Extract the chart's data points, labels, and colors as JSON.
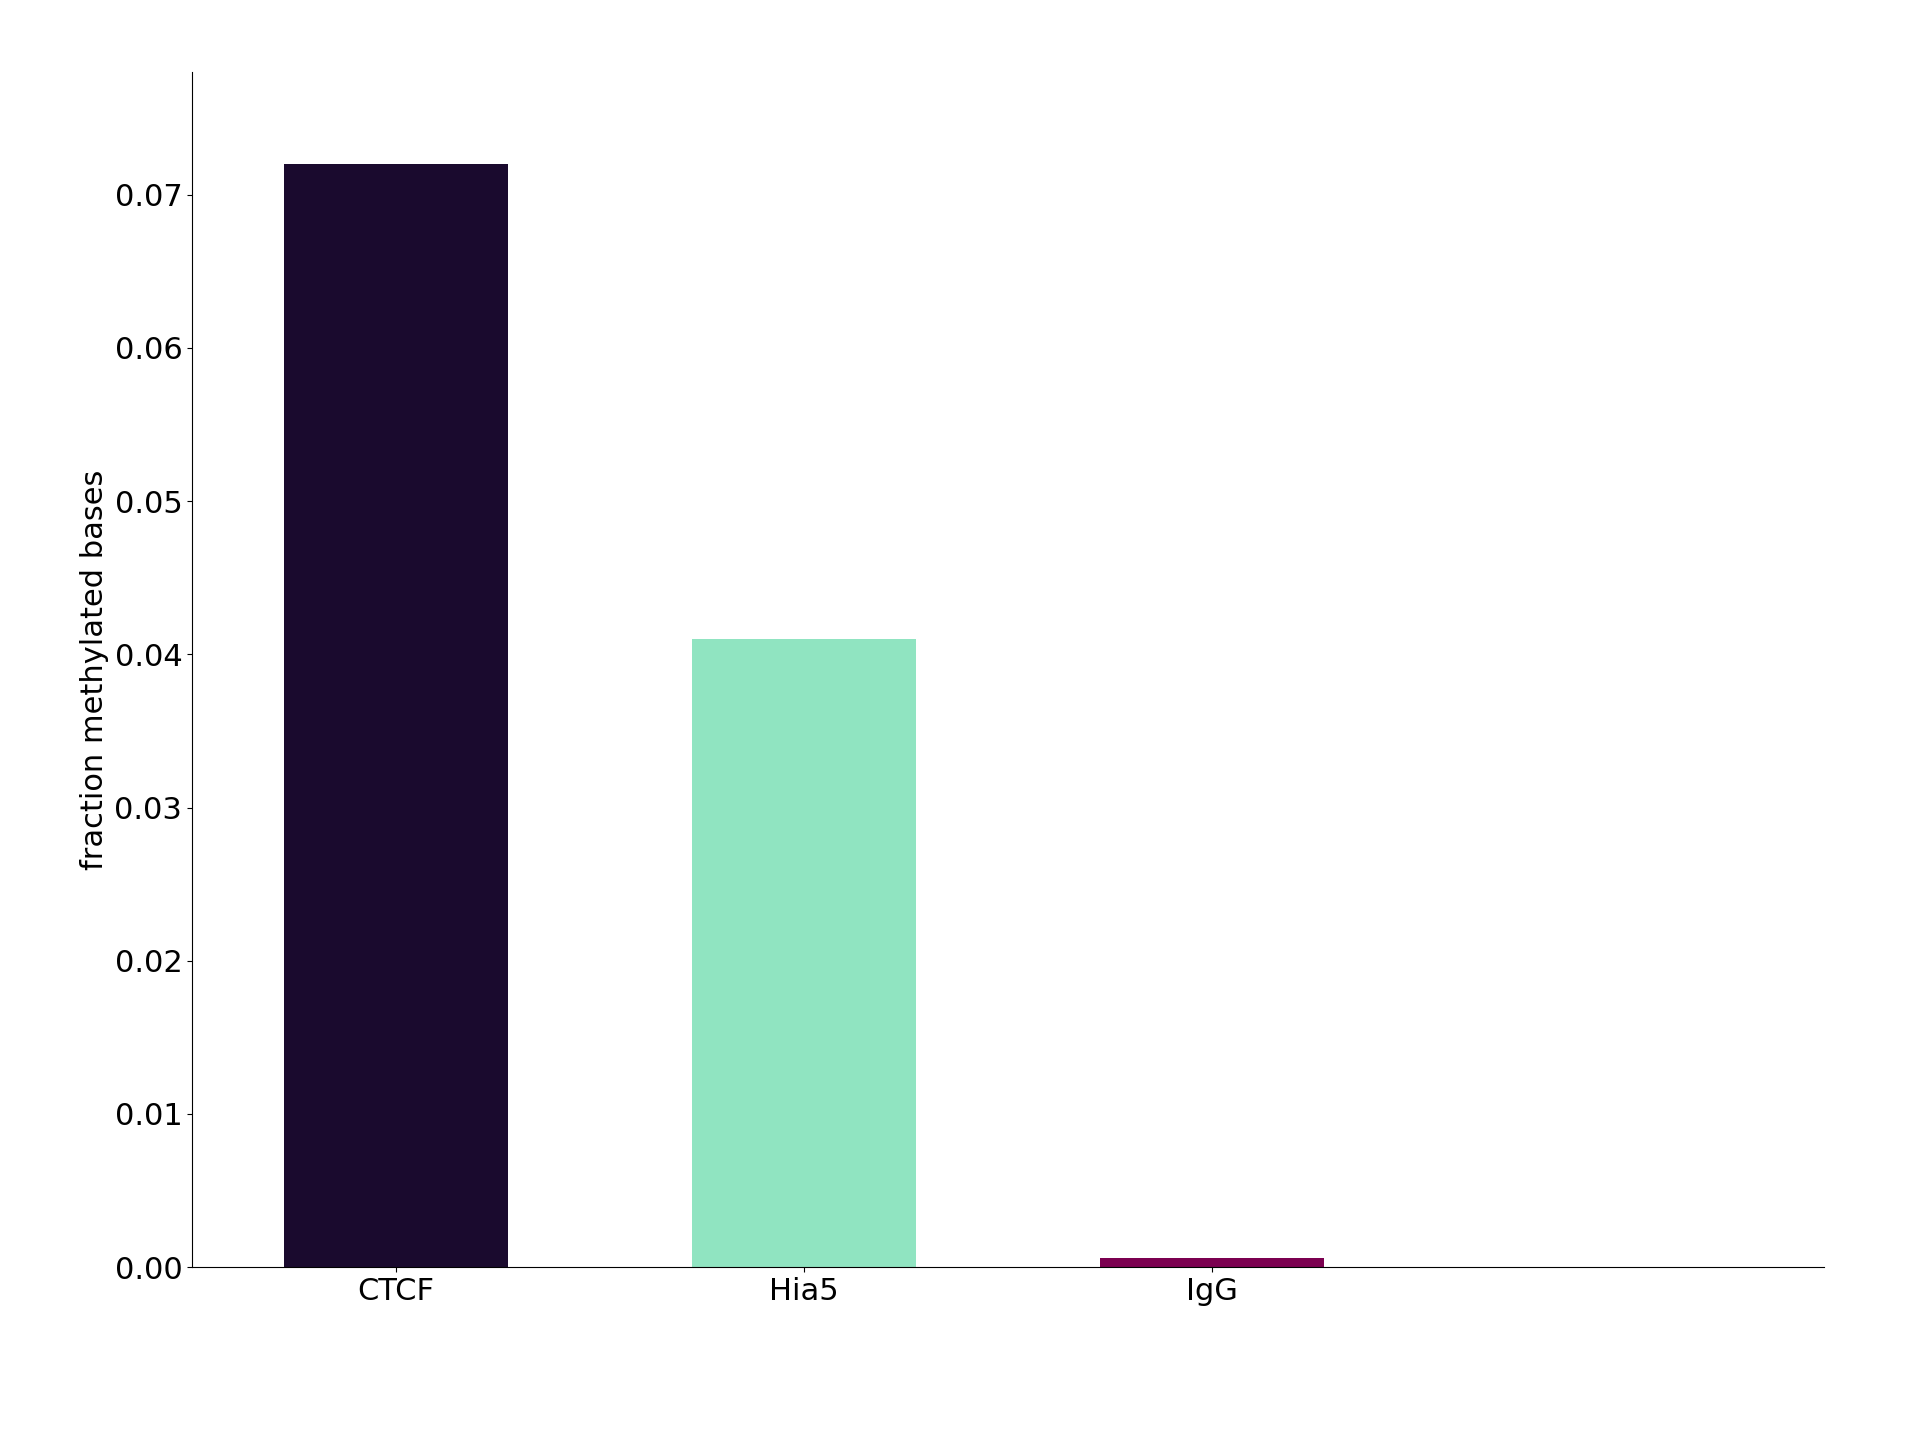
{
  "categories": [
    "CTCF",
    "Hia5",
    "IgG"
  ],
  "values": [
    0.072,
    0.041,
    0.0006
  ],
  "bar_colors": [
    "#1a0a2e",
    "#90e4c1",
    "#7b0050"
  ],
  "ylabel": "fraction methylated bases",
  "ylim": [
    0,
    0.078
  ],
  "background_color": "#ffffff",
  "ylabel_fontsize": 22,
  "tick_fontsize": 22,
  "bar_width": 0.55,
  "figsize": [
    19.2,
    14.4
  ],
  "dpi": 100,
  "yticks": [
    0.0,
    0.01,
    0.02,
    0.03,
    0.04,
    0.05,
    0.06,
    0.07
  ]
}
